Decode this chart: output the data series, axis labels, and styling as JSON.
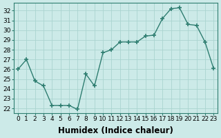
{
  "x": [
    0,
    1,
    2,
    3,
    4,
    5,
    6,
    7,
    8,
    9,
    10,
    11,
    12,
    13,
    14,
    15,
    16,
    17,
    18,
    19,
    20,
    21,
    22,
    23
  ],
  "y": [
    26.0,
    27.0,
    24.8,
    24.3,
    22.3,
    22.3,
    22.3,
    21.9,
    25.5,
    24.3,
    27.7,
    28.0,
    28.8,
    28.8,
    28.8,
    29.4,
    29.5,
    31.2,
    32.2,
    32.3,
    30.6,
    30.5,
    28.8,
    26.1
  ],
  "xlabel": "Humidex (Indice chaleur)",
  "line_color": "#2e7d70",
  "marker": "+",
  "marker_size": 4,
  "bg_color": "#cceae8",
  "grid_color": "#aad4d0",
  "ylim": [
    21.5,
    32.8
  ],
  "yticks": [
    22,
    23,
    24,
    25,
    26,
    27,
    28,
    29,
    30,
    31,
    32
  ],
  "xticks": [
    0,
    1,
    2,
    3,
    4,
    5,
    6,
    7,
    8,
    9,
    10,
    11,
    12,
    13,
    14,
    15,
    16,
    17,
    18,
    19,
    20,
    21,
    22,
    23
  ],
  "tick_label_fontsize": 6.5,
  "xlabel_fontsize": 8.5
}
